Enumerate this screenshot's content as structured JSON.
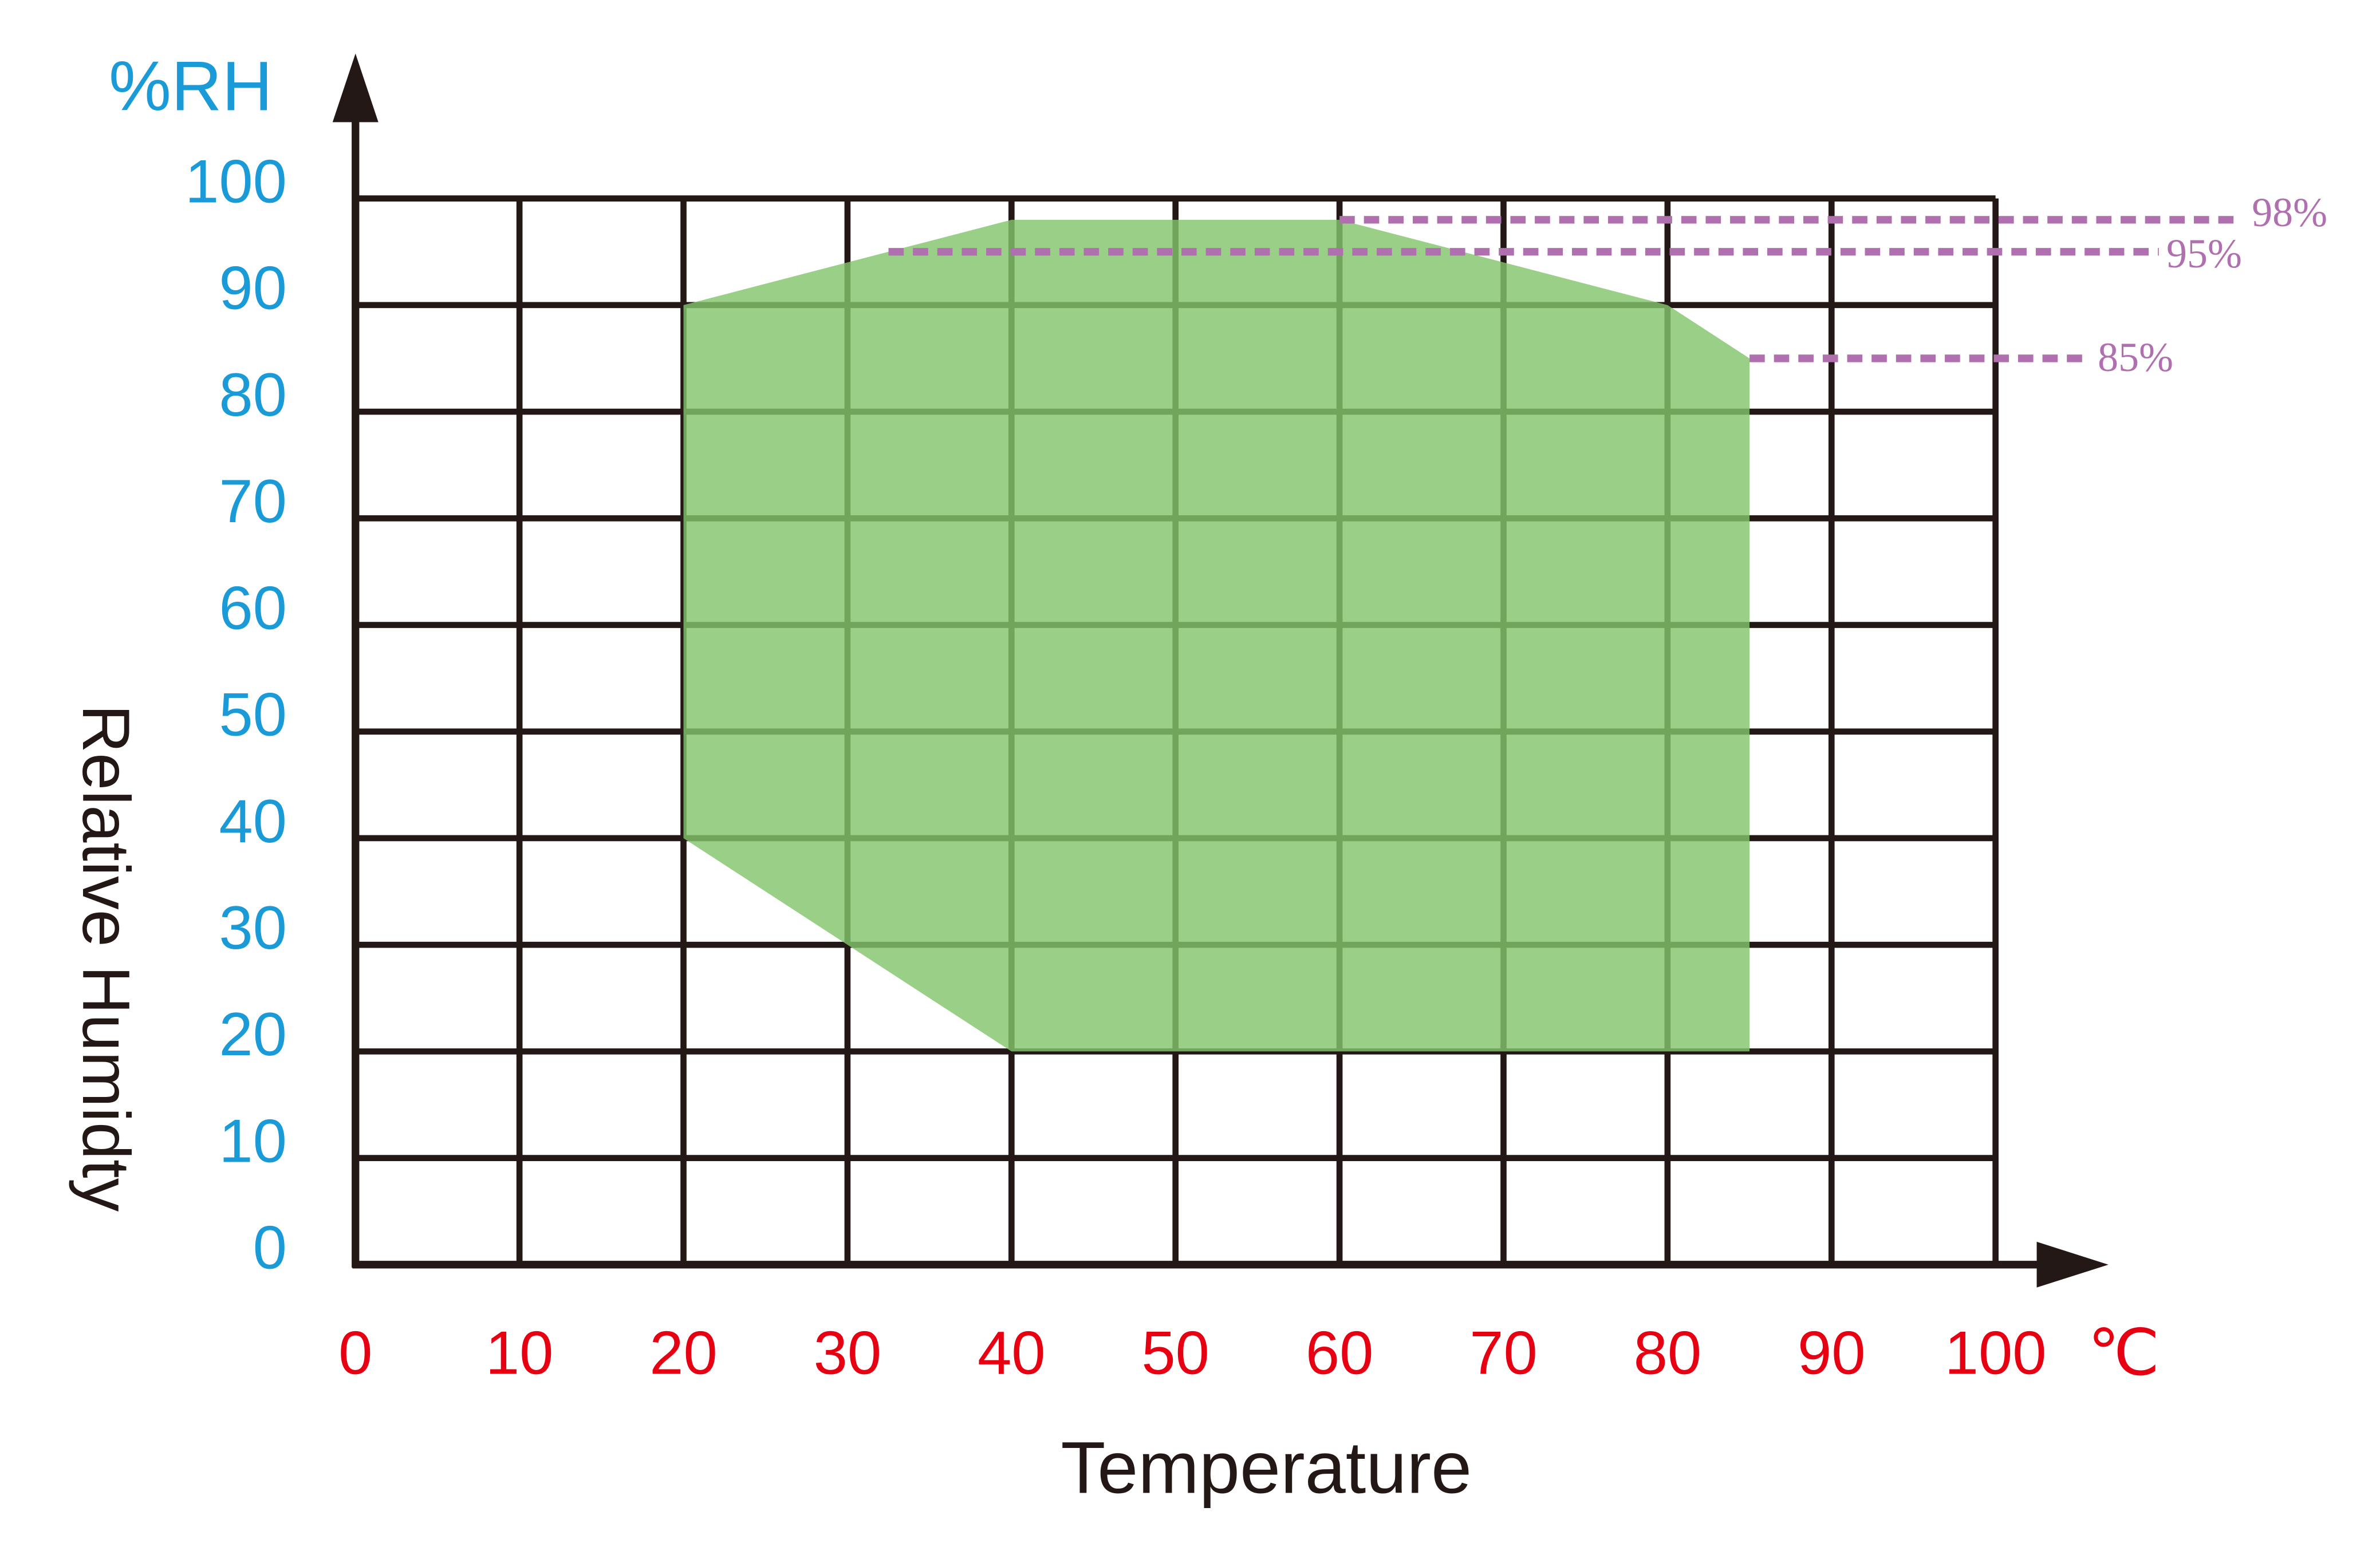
{
  "chart_data": {
    "type": "area",
    "y_unit": "%RH",
    "x_unit": "℃",
    "x_label": "Temperature",
    "y_label": "Relative Humidty",
    "x": [
      20,
      40,
      60,
      80,
      85,
      85,
      40,
      30,
      20
    ],
    "values": [
      90,
      98,
      98,
      90,
      85,
      20,
      20,
      30,
      40
    ],
    "color": "#84c46c",
    "xlim": [
      0,
      100
    ],
    "ylim": [
      0,
      100
    ],
    "xticks": [
      0,
      10,
      20,
      30,
      40,
      50,
      60,
      70,
      80,
      90,
      100
    ],
    "yticks": [
      0,
      10,
      20,
      30,
      40,
      50,
      60,
      70,
      80,
      90,
      100
    ],
    "grid": true,
    "x_tick_color": "#e60012",
    "y_tick_color": "#1a9bd7",
    "reference_color": "#b06faf",
    "reference_lines": [
      {
        "value": 98,
        "label": "98%",
        "x_start": 60
      },
      {
        "value": 95,
        "label": "95%",
        "x_start": 32.5
      },
      {
        "value": 85,
        "label": "85%",
        "x_start": 85
      }
    ]
  }
}
